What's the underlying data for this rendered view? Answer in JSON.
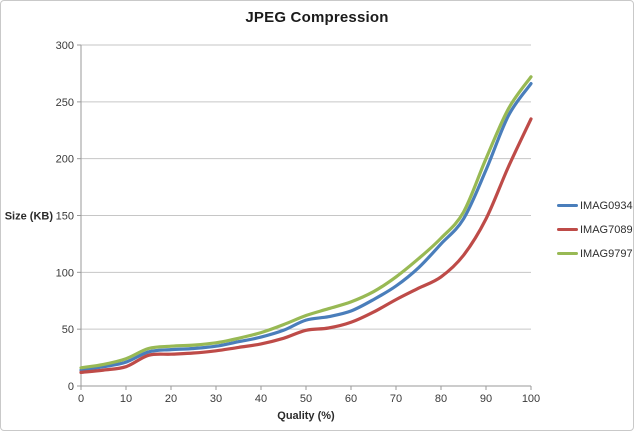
{
  "chart_data": {
    "type": "line",
    "title": "JPEG Compression",
    "xlabel": "Quality (%)",
    "ylabel": "Size (KB)",
    "xlim": [
      0,
      100
    ],
    "ylim": [
      0,
      300
    ],
    "x_ticks": [
      0,
      10,
      20,
      30,
      40,
      50,
      60,
      70,
      80,
      90,
      100
    ],
    "y_ticks": [
      0,
      50,
      100,
      150,
      200,
      250,
      300
    ],
    "grid": "horizontal",
    "legend_position": "right",
    "smooth_lines": true,
    "x": [
      0,
      5,
      10,
      15,
      20,
      25,
      30,
      35,
      40,
      45,
      50,
      55,
      60,
      65,
      70,
      75,
      80,
      85,
      90,
      95,
      100
    ],
    "series": [
      {
        "name": "IMAG0934",
        "color": "#4A7EBB",
        "values": [
          14,
          17,
          21,
          30,
          32,
          33,
          35,
          39,
          43,
          49,
          58,
          61,
          66,
          76,
          88,
          104,
          125,
          147,
          190,
          238,
          266
        ]
      },
      {
        "name": "IMAG7089",
        "color": "#BE4B48",
        "values": [
          12,
          14,
          17,
          27,
          28,
          29,
          31,
          34,
          37,
          42,
          49,
          51,
          56,
          65,
          76,
          86,
          96,
          115,
          147,
          193,
          235
        ]
      },
      {
        "name": "IMAG9797",
        "color": "#98B954",
        "values": [
          16,
          19,
          24,
          33,
          35,
          36,
          38,
          42,
          47,
          54,
          62,
          68,
          74,
          83,
          96,
          112,
          130,
          153,
          200,
          244,
          272
        ]
      }
    ],
    "colors": {
      "gridline": "#c6c6c6",
      "axis": "#9a9a9a",
      "tick_label": "#3a3a3a"
    }
  }
}
